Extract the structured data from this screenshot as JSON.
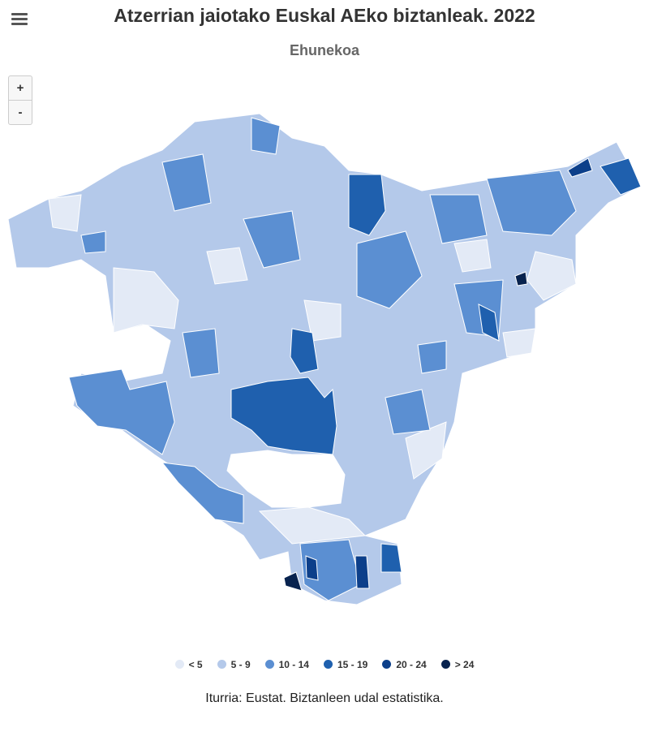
{
  "title": "Atzerrian jaiotako Euskal AEko biztanleak. 2022",
  "subtitle": "Ehunekoa",
  "zoom_buttons": [
    "+",
    "-"
  ],
  "legend": {
    "items": [
      {
        "label": "< 5",
        "color": "#e3eaf6"
      },
      {
        "label": "5 - 9",
        "color": "#b4c9ea"
      },
      {
        "label": "10 - 14",
        "color": "#5b8fd2"
      },
      {
        "label": "15 - 19",
        "color": "#1f60ae"
      },
      {
        "label": "20 - 24",
        "color": "#0c3f8a"
      },
      {
        "label": "> 24",
        "color": "#08234f"
      }
    ]
  },
  "source": "Iturria: Eustat. Biztanleen udal estatistika."
}
